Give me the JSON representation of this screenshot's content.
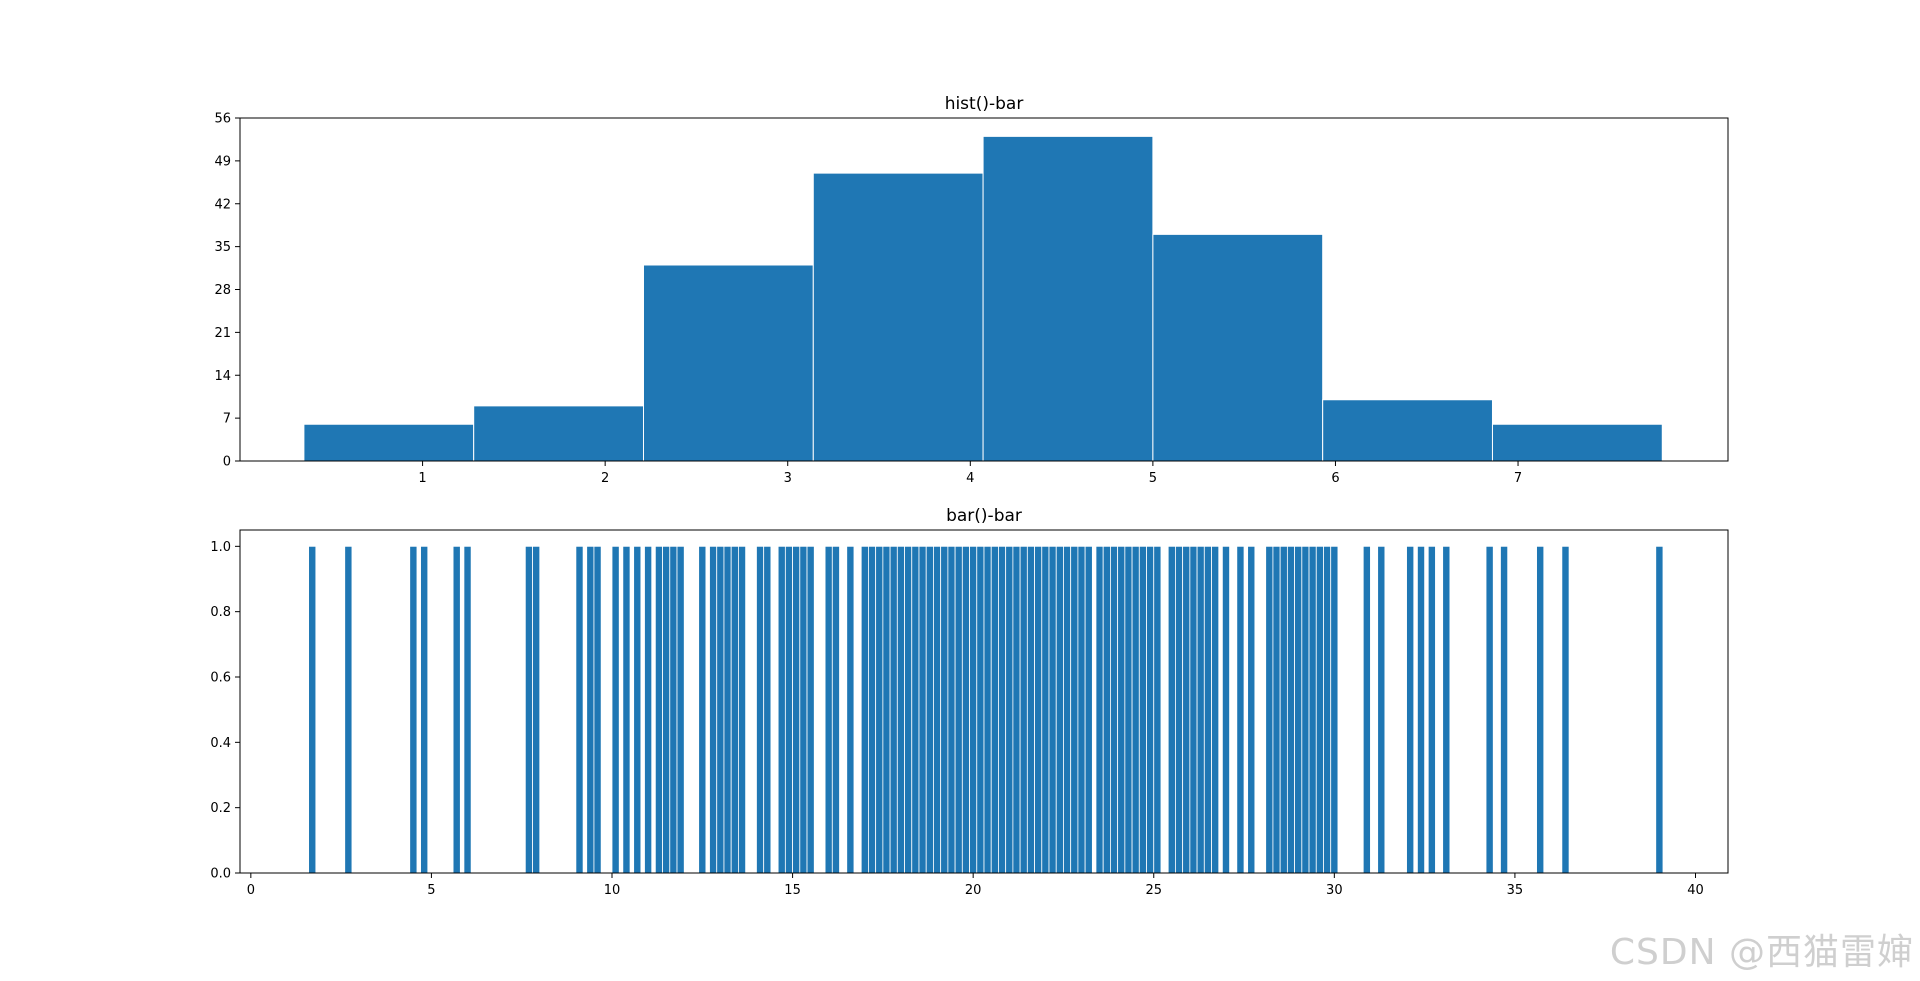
{
  "colors": {
    "bar": "#1f77b4",
    "edge": "#ffffff",
    "axis": "#000000"
  },
  "watermark": "CSDN @西猫雷婶",
  "chart_data": [
    {
      "type": "bar",
      "title": "hist()-bar",
      "xlabel": "",
      "ylabel": "",
      "bins": [
        {
          "left": 0.35,
          "right": 1.28,
          "count": 6
        },
        {
          "left": 1.28,
          "right": 2.21,
          "count": 9
        },
        {
          "left": 2.21,
          "right": 3.14,
          "count": 32
        },
        {
          "left": 3.14,
          "right": 4.07,
          "count": 47
        },
        {
          "left": 4.07,
          "right": 5.0,
          "count": 53
        },
        {
          "left": 5.0,
          "right": 5.93,
          "count": 37
        },
        {
          "left": 5.93,
          "right": 6.86,
          "count": 10
        },
        {
          "left": 6.86,
          "right": 7.79,
          "count": 6
        }
      ],
      "xlim": [
        -0.0,
        8.15
      ],
      "ylim": [
        0,
        56
      ],
      "xticks": [
        1,
        2,
        3,
        4,
        5,
        6,
        7
      ],
      "yticks": [
        0,
        7,
        14,
        21,
        28,
        35,
        42,
        49,
        56
      ]
    },
    {
      "type": "bar",
      "title": "bar()-bar",
      "xlabel": "",
      "ylabel": "",
      "bar_width": 0.2,
      "x": [
        1.7,
        2.7,
        4.5,
        4.8,
        5.7,
        6.0,
        7.7,
        7.9,
        9.1,
        9.4,
        9.6,
        10.1,
        10.4,
        10.7,
        11.0,
        11.3,
        11.5,
        11.7,
        11.9,
        12.5,
        12.8,
        13.0,
        13.2,
        13.4,
        13.6,
        14.1,
        14.3,
        14.7,
        14.9,
        15.1,
        15.3,
        15.5,
        16.0,
        16.2,
        16.6,
        17.0,
        17.2,
        17.4,
        17.6,
        17.8,
        18.0,
        18.2,
        18.4,
        18.6,
        18.8,
        19.0,
        19.2,
        19.4,
        19.6,
        19.8,
        20.0,
        20.2,
        20.4,
        20.6,
        20.8,
        21.0,
        21.2,
        21.4,
        21.6,
        21.8,
        22.0,
        22.2,
        22.4,
        22.6,
        22.8,
        23.0,
        23.2,
        23.5,
        23.7,
        23.9,
        24.1,
        24.3,
        24.5,
        24.7,
        24.9,
        25.1,
        25.5,
        25.7,
        25.9,
        26.1,
        26.3,
        26.5,
        26.7,
        27.0,
        27.4,
        27.7,
        28.2,
        28.4,
        28.6,
        28.8,
        29.0,
        29.2,
        29.4,
        29.6,
        29.8,
        30.0,
        30.9,
        31.3,
        32.1,
        32.4,
        32.7,
        33.1,
        34.3,
        34.7,
        35.7,
        36.4,
        39.0
      ],
      "values": [
        1.0,
        1.0,
        1.0,
        1.0,
        1.0,
        1.0,
        1.0,
        1.0,
        1.0,
        1.0,
        1.0,
        1.0,
        1.0,
        1.0,
        1.0,
        1.0,
        1.0,
        1.0,
        1.0,
        1.0,
        1.0,
        1.0,
        1.0,
        1.0,
        1.0,
        1.0,
        1.0,
        1.0,
        1.0,
        1.0,
        1.0,
        1.0,
        1.0,
        1.0,
        1.0,
        1.0,
        1.0,
        1.0,
        1.0,
        1.0,
        1.0,
        1.0,
        1.0,
        1.0,
        1.0,
        1.0,
        1.0,
        1.0,
        1.0,
        1.0,
        1.0,
        1.0,
        1.0,
        1.0,
        1.0,
        1.0,
        1.0,
        1.0,
        1.0,
        1.0,
        1.0,
        1.0,
        1.0,
        1.0,
        1.0,
        1.0,
        1.0,
        1.0,
        1.0,
        1.0,
        1.0,
        1.0,
        1.0,
        1.0,
        1.0,
        1.0,
        1.0,
        1.0,
        1.0,
        1.0,
        1.0,
        1.0,
        1.0,
        1.0,
        1.0,
        1.0,
        1.0,
        1.0,
        1.0,
        1.0,
        1.0,
        1.0,
        1.0,
        1.0,
        1.0,
        1.0,
        1.0,
        1.0,
        1.0,
        1.0,
        1.0,
        1.0,
        1.0,
        1.0,
        1.0,
        1.0,
        1.0
      ],
      "xlim": [
        -0.3,
        40.9
      ],
      "ylim": [
        0,
        1.05
      ],
      "xticks": [
        0,
        5,
        10,
        15,
        20,
        25,
        30,
        35,
        40
      ],
      "yticks": [
        "0.0",
        "0.2",
        "0.4",
        "0.6",
        "0.8",
        "1.0"
      ],
      "grid": false,
      "legend": "none"
    }
  ]
}
